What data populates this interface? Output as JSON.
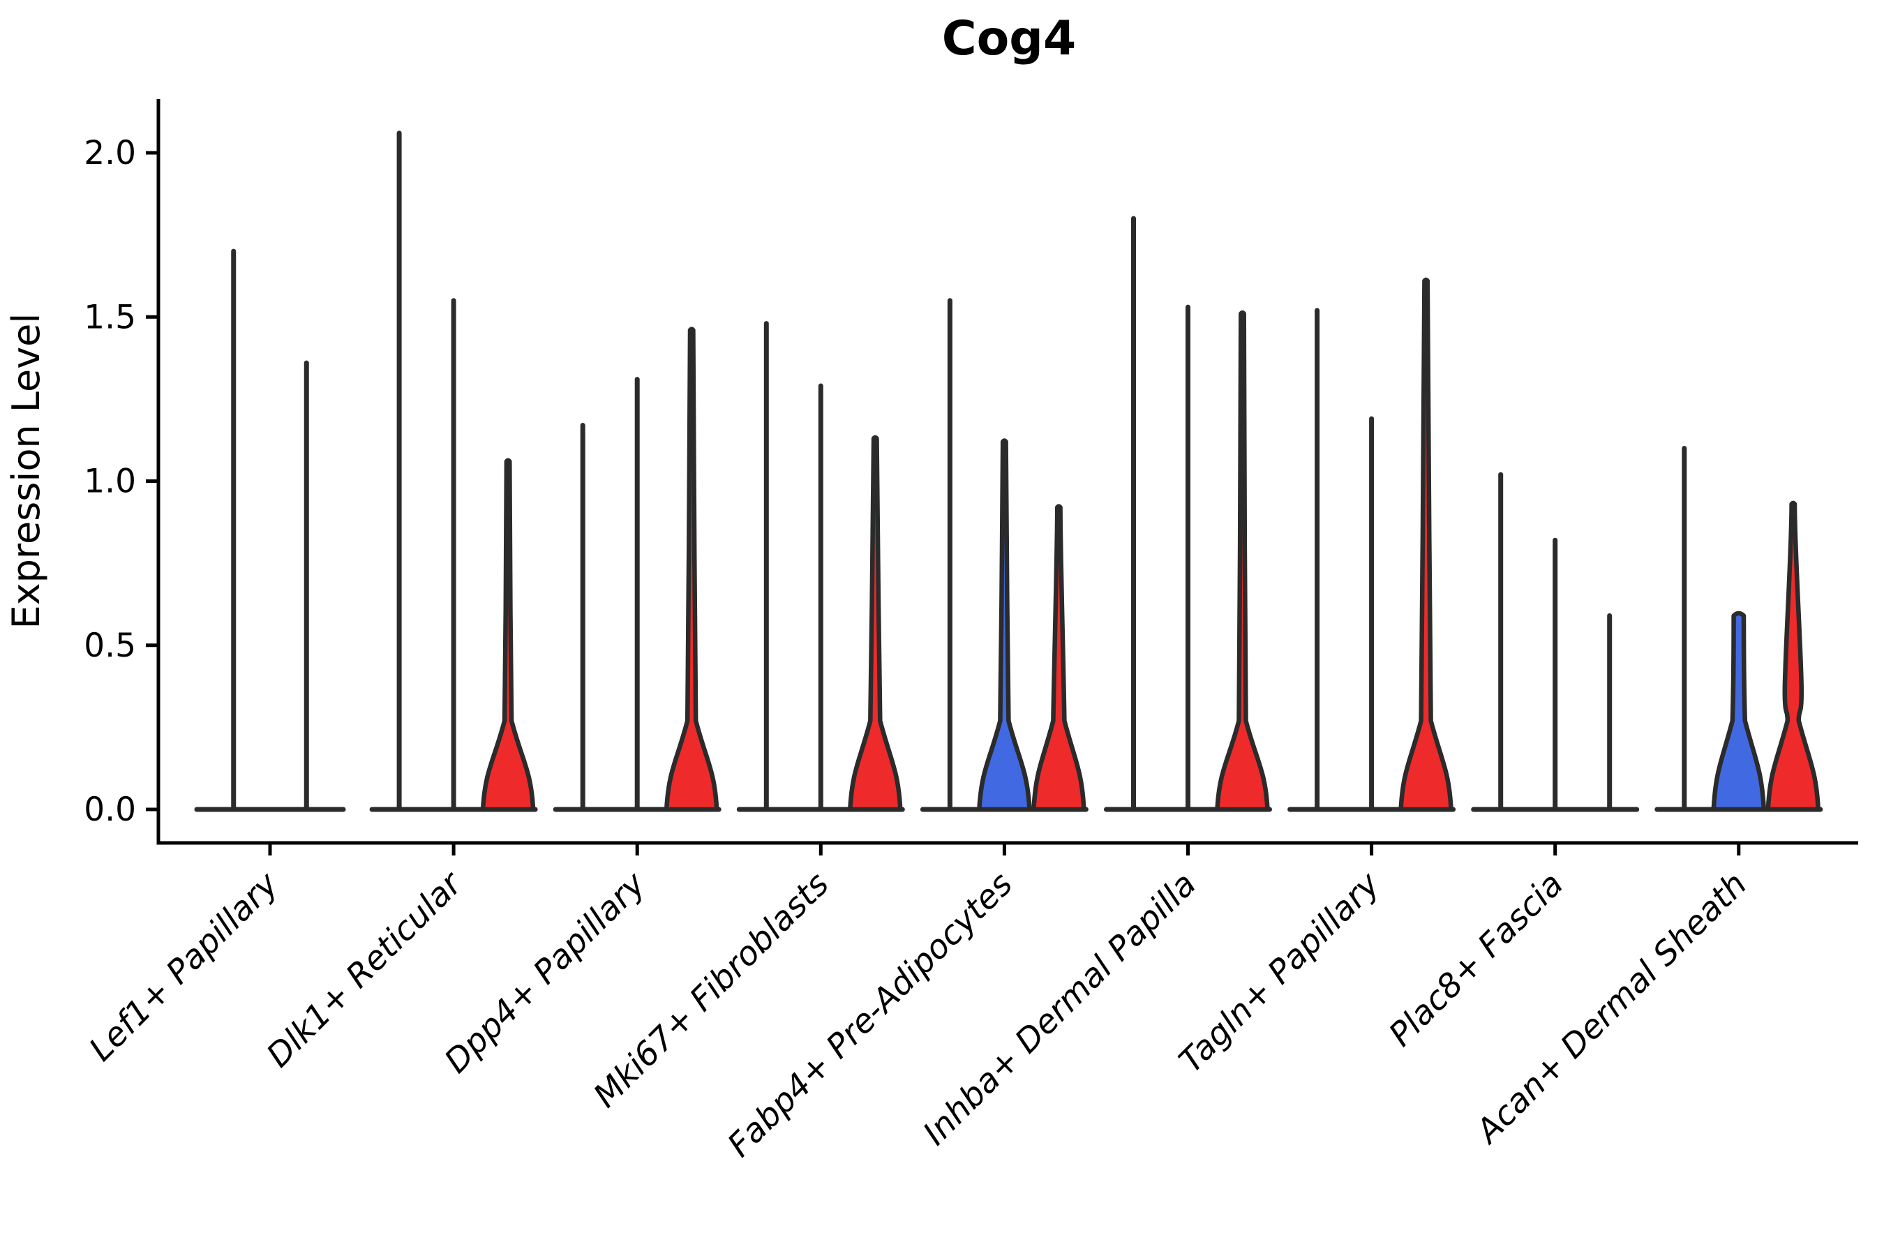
{
  "title": "Cog4",
  "y_axis": {
    "label": "Expression Level",
    "ticks": [
      0.0,
      0.5,
      1.0,
      1.5,
      2.0
    ],
    "tick_labels": [
      "0.0",
      "0.5",
      "1.0",
      "1.5",
      "2.0"
    ],
    "range": [
      -0.1,
      2.17
    ]
  },
  "colors": {
    "red": "#EE2A2A",
    "blue": "#4169E1",
    "outline": "#2B2B2B",
    "background": "#FFFFFF"
  },
  "chart_data": {
    "type": "violin",
    "title": "Cog4",
    "xlabel": "",
    "ylabel": "Expression Level",
    "ylim": [
      -0.1,
      2.17
    ],
    "grid": false,
    "legend": "none",
    "categories": [
      "Lef1+ Papillary",
      "Dlk1+ Reticular",
      "Dpp4+ Papillary",
      "Mki67+ Fibroblasts",
      "Fabp4+ Pre-Adipocytes",
      "Inhba+ Dermal Papilla",
      "Tagln+ Papillary",
      "Plac8+ Fascia",
      "Acan+ Dermal Sheath"
    ],
    "groups": [
      {
        "category": "Lef1+ Papillary",
        "violins": [
          {
            "slot": -0.67,
            "kind": "spike",
            "fill": null,
            "max": 1.7
          },
          {
            "slot": 0.67,
            "kind": "spike",
            "fill": null,
            "max": 1.36
          }
        ]
      },
      {
        "category": "Dlk1+ Reticular",
        "violins": [
          {
            "slot": -1,
            "kind": "spike",
            "fill": null,
            "max": 2.06
          },
          {
            "slot": 0,
            "kind": "spike",
            "fill": null,
            "max": 1.55
          },
          {
            "slot": 1,
            "kind": "body",
            "fill": "red",
            "max": 1.06,
            "neck_hw": 5
          }
        ]
      },
      {
        "category": "Dpp4+ Papillary",
        "violins": [
          {
            "slot": -1,
            "kind": "spike",
            "fill": null,
            "max": 1.17
          },
          {
            "slot": 0,
            "kind": "spike",
            "fill": null,
            "max": 1.31
          },
          {
            "slot": 1,
            "kind": "body",
            "fill": "red",
            "max": 1.46,
            "neck_hw": 6
          }
        ]
      },
      {
        "category": "Mki67+ Fibroblasts",
        "violins": [
          {
            "slot": -1,
            "kind": "spike",
            "fill": null,
            "max": 1.48
          },
          {
            "slot": 0,
            "kind": "spike",
            "fill": null,
            "max": 1.29
          },
          {
            "slot": 1,
            "kind": "body",
            "fill": "red",
            "max": 1.13,
            "neck_hw": 7
          }
        ]
      },
      {
        "category": "Fabp4+ Pre-Adipocytes",
        "violins": [
          {
            "slot": -1,
            "kind": "spike",
            "fill": null,
            "max": 1.55
          },
          {
            "slot": 0,
            "kind": "body",
            "fill": "blue",
            "max": 1.12,
            "neck_hw": 6
          },
          {
            "slot": 1,
            "kind": "body",
            "fill": "red",
            "max": 0.92,
            "neck_hw": 8
          }
        ]
      },
      {
        "category": "Inhba+ Dermal Papilla",
        "violins": [
          {
            "slot": -1,
            "kind": "spike",
            "fill": null,
            "max": 1.8
          },
          {
            "slot": 0,
            "kind": "spike",
            "fill": null,
            "max": 1.53
          },
          {
            "slot": 1,
            "kind": "body",
            "fill": "red",
            "max": 1.51,
            "neck_hw": 5
          }
        ]
      },
      {
        "category": "Tagln+ Papillary",
        "violins": [
          {
            "slot": -1,
            "kind": "spike",
            "fill": null,
            "max": 1.52
          },
          {
            "slot": 0,
            "kind": "spike",
            "fill": null,
            "max": 1.19
          },
          {
            "slot": 1,
            "kind": "body",
            "fill": "red",
            "max": 1.61,
            "neck_hw": 7
          }
        ]
      },
      {
        "category": "Plac8+ Fascia",
        "violins": [
          {
            "slot": -1,
            "kind": "spike",
            "fill": null,
            "max": 1.02
          },
          {
            "slot": 0,
            "kind": "spike",
            "fill": null,
            "max": 0.82
          },
          {
            "slot": 1,
            "kind": "spike",
            "fill": null,
            "max": 0.59
          }
        ]
      },
      {
        "category": "Acan+ Dermal Sheath",
        "violins": [
          {
            "slot": -1,
            "kind": "spike",
            "fill": null,
            "max": 1.1
          },
          {
            "slot": 0,
            "kind": "body",
            "fill": "blue",
            "max": 0.59,
            "neck_hw": 9,
            "blunt": true
          },
          {
            "slot": 1,
            "kind": "body",
            "fill": "red",
            "max": 0.93,
            "neck_hw": 8,
            "mid_bulge": {
              "y": 0.36,
              "hw": 12
            }
          }
        ]
      }
    ]
  }
}
